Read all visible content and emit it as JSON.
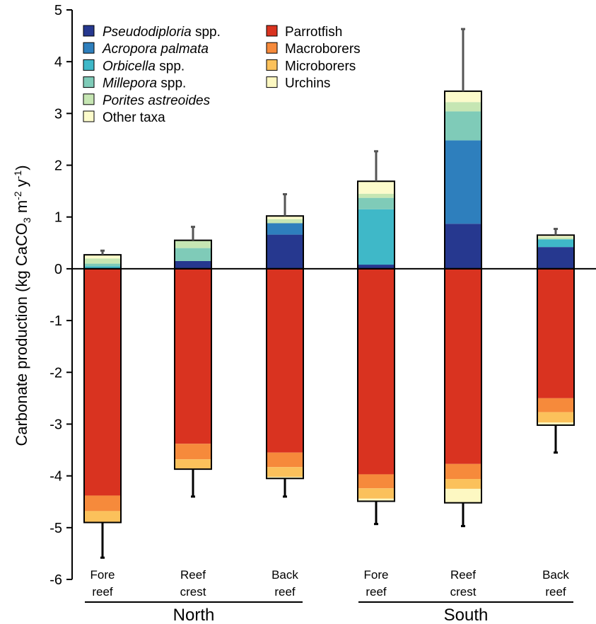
{
  "chart_data": {
    "type": "bar",
    "stacked": true,
    "ylabel_main": "Carbonate production (kg CaCO",
    "ylabel_sub3": "3",
    "ylabel_m": " m",
    "ylabel_sup1": "-2",
    "ylabel_y": " y",
    "ylabel_sup2": "-1",
    "ylabel_close": ")",
    "ylim": [
      -6,
      5
    ],
    "yticks": [
      "5",
      "4",
      "3",
      "2",
      "1",
      "0",
      "-1",
      "-2",
      "-3",
      "-4",
      "-5",
      "-6"
    ],
    "ytick_values": [
      5,
      4,
      3,
      2,
      1,
      0,
      -1,
      -2,
      -3,
      -4,
      -5,
      -6
    ],
    "categories": [
      {
        "line1": "Fore",
        "line2": "reef"
      },
      {
        "line1": "Reef",
        "line2": "crest"
      },
      {
        "line1": "Back",
        "line2": "reef"
      },
      {
        "line1": "Fore",
        "line2": "reef"
      },
      {
        "line1": "Reef",
        "line2": "crest"
      },
      {
        "line1": "Back",
        "line2": "reef"
      }
    ],
    "groups": [
      {
        "label": "North",
        "categories": [
          0,
          1,
          2
        ]
      },
      {
        "label": "South",
        "categories": [
          3,
          4,
          5
        ]
      }
    ],
    "positive_series": [
      {
        "name_italic": "Pseudodiploria",
        "name_rest": " spp.",
        "color": "#26388f",
        "values": [
          0.0,
          0.15,
          0.66,
          0.08,
          0.87,
          0.42
        ]
      },
      {
        "name_italic": "Acropora palmata",
        "name_rest": "",
        "color": "#2e7fbd",
        "values": [
          0.0,
          0.0,
          0.22,
          0.0,
          1.61,
          0.0
        ]
      },
      {
        "name_italic": "Orbicella",
        "name_rest": " spp.",
        "color": "#3fb8c8",
        "values": [
          0.05,
          0.0,
          0.0,
          1.07,
          0.0,
          0.15
        ]
      },
      {
        "name_italic": "Millepora",
        "name_rest": " spp.",
        "color": "#7fcbb8",
        "values": [
          0.05,
          0.25,
          0.0,
          0.22,
          0.56,
          0.0
        ]
      },
      {
        "name_italic": "Porites astreoides",
        "name_rest": "",
        "color": "#c6e6b3",
        "values": [
          0.1,
          0.15,
          0.08,
          0.08,
          0.18,
          0.04
        ]
      },
      {
        "name_italic": "",
        "name_rest": "Other taxa",
        "color": "#fcfbcb",
        "values": [
          0.07,
          0.0,
          0.06,
          0.24,
          0.21,
          0.04
        ]
      }
    ],
    "negative_series": [
      {
        "name": "Parrotfish",
        "color": "#d93320",
        "values": [
          -4.38,
          -3.38,
          -3.55,
          -3.97,
          -3.77,
          -2.5
        ]
      },
      {
        "name": "Macroborers",
        "color": "#f68a3b",
        "values": [
          -0.3,
          -0.3,
          -0.28,
          -0.27,
          -0.29,
          -0.27
        ]
      },
      {
        "name": "Microborers",
        "color": "#fbc15b",
        "values": [
          -0.22,
          -0.18,
          -0.19,
          -0.2,
          -0.19,
          -0.2
        ]
      },
      {
        "name": "Urchins",
        "color": "#fdf8c2",
        "values": [
          0.0,
          -0.01,
          -0.03,
          -0.05,
          -0.27,
          -0.05
        ]
      }
    ],
    "error_positive": [
      0.35,
      0.81,
      1.44,
      2.27,
      4.63,
      0.77
    ],
    "error_negative": [
      -5.58,
      -4.4,
      -4.4,
      -4.93,
      -4.97,
      -3.55
    ],
    "grid": false,
    "legend_position": "top-left"
  }
}
